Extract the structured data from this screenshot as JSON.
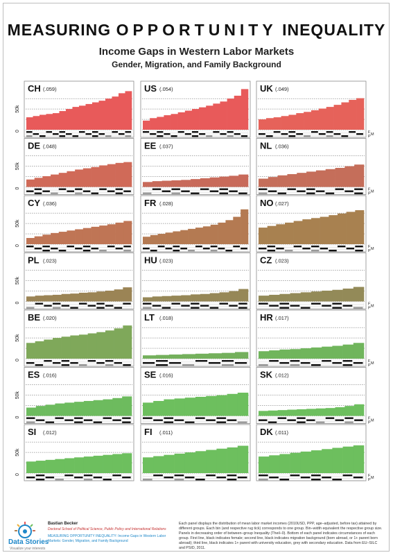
{
  "header": {
    "title_a": "MEASURING",
    "title_b": "OPPORTUNITY",
    "title_c": "INEQUALITY",
    "subtitle": "Income Gaps in Western Labor Markets",
    "subsubtitle": "Gender, Migration, and Family Background"
  },
  "footer": {
    "brand": "Data Stories",
    "tagline": "Visualize your interests",
    "author": "Bastian Becker",
    "affiliation": "Doctoral School of Political Science, Public Policy and International Relations",
    "citation": "MEASURING OPPORTUNITY INEQUALITY: Income Gaps in Western Labor Markets: Gender, Migration, and Family Background",
    "note": "Each panel displays the distribution of mean labor market incomes (2010USD, PPP, age–adjusted, before tax) attained by different groups. Each bin (and respective rug tick) corresponds to one group. Bin–width equivalent the respective group size. Panels in decreasing order of between–group Inequality (Theil–0). Bottom of each panel indicates circumstances of each group. First line, black indicates female; second line, black indicates migration background (born abroad, or 1+ parent born abroad); third line, black indicates 1+ parent with university education, grey with secondary education. Data from EU–SILC and PSID, 2011."
  },
  "colors": {
    "red": "#e85a5a",
    "brown_red": "#c9705a",
    "brown": "#b07f50",
    "olive": "#8f8f5a",
    "green": "#6dbf5e",
    "grid": "#555555"
  },
  "chart_data": {
    "type": "bar",
    "ylabel": "",
    "yticks": [
      "0",
      "50k"
    ],
    "ylim": [
      0,
      100000
    ],
    "row_labels": [
      "F",
      "M",
      "P"
    ],
    "panels": [
      {
        "country": "CH",
        "theil": "(.059)",
        "color": "#e85a5a",
        "values": [
          30000,
          33000,
          36000,
          38000,
          40000,
          45000,
          50000,
          55000,
          58000,
          62000,
          66000,
          70000,
          75000,
          80000,
          88000,
          93000
        ]
      },
      {
        "country": "US",
        "theil": "(.054)",
        "color": "#e85a5a",
        "values": [
          22000,
          28000,
          31000,
          35000,
          38000,
          42000,
          46000,
          50000,
          54000,
          58000,
          63000,
          68000,
          75000,
          82000,
          98000
        ]
      },
      {
        "country": "UK",
        "theil": "(.049)",
        "color": "#e6625a",
        "values": [
          25000,
          28000,
          30000,
          33000,
          36000,
          40000,
          43000,
          47000,
          51000,
          55000,
          60000,
          66000,
          72000,
          76000
        ]
      },
      {
        "country": "DE",
        "theil": "(.048)",
        "color": "#d06a58",
        "values": [
          18000,
          22000,
          26000,
          30000,
          34000,
          38000,
          42000,
          45000,
          48000,
          52000,
          55000,
          58000,
          60000
        ]
      },
      {
        "country": "EE",
        "theil": "(.037)",
        "color": "#c86a5a",
        "values": [
          12000,
          14000,
          15000,
          16000,
          17000,
          19000,
          21000,
          23000,
          25000,
          27000,
          30000
        ]
      },
      {
        "country": "NL",
        "theil": "(.036)",
        "color": "#c56e5a",
        "values": [
          20000,
          24000,
          28000,
          31000,
          34000,
          37000,
          40000,
          43000,
          46000,
          50000,
          54000
        ]
      },
      {
        "country": "CY",
        "theil": "(.036)",
        "color": "#bf7555",
        "values": [
          15000,
          19000,
          23000,
          27000,
          30000,
          33000,
          36000,
          39000,
          42000,
          45000,
          48000,
          52000,
          56000
        ]
      },
      {
        "country": "FR",
        "theil": "(.028)",
        "color": "#b47a52",
        "values": [
          18000,
          22000,
          25000,
          28000,
          31000,
          34000,
          37000,
          40000,
          43000,
          47000,
          52000,
          58000,
          66000,
          84000
        ]
      },
      {
        "country": "NO",
        "theil": "(.027)",
        "color": "#a88150",
        "values": [
          40000,
          44000,
          48000,
          52000,
          56000,
          60000,
          63000,
          66000,
          70000,
          74000,
          78000,
          82000
        ]
      },
      {
        "country": "PL",
        "theil": "(.023)",
        "color": "#9b8455",
        "values": [
          12000,
          14000,
          15000,
          16000,
          18000,
          19000,
          21000,
          22000,
          24000,
          26000,
          29000,
          34000
        ]
      },
      {
        "country": "HU",
        "theil": "(.023)",
        "color": "#968757",
        "values": [
          10000,
          12000,
          13000,
          14000,
          15000,
          17000,
          18000,
          20000,
          22000,
          25000,
          30000
        ]
      },
      {
        "country": "CZ",
        "theil": "(.023)",
        "color": "#938a58",
        "values": [
          14000,
          16000,
          18000,
          20000,
          22000,
          24000,
          26000,
          28000,
          31000,
          35000
        ]
      },
      {
        "country": "BE",
        "theil": "(.020)",
        "color": "#7fa85a",
        "values": [
          38000,
          42000,
          46000,
          50000,
          53000,
          56000,
          58000,
          61000,
          64000,
          68000,
          73000,
          80000
        ]
      },
      {
        "country": "LT",
        "theil": "(.018)",
        "color": "#74b05c",
        "values": [
          8000,
          9000,
          10000,
          11000,
          12000,
          13000,
          14000,
          16000
        ]
      },
      {
        "country": "HR",
        "theil": "(.017)",
        "color": "#70b55c",
        "values": [
          18000,
          20000,
          22000,
          23000,
          25000,
          27000,
          29000,
          31000,
          34000,
          38000
        ]
      },
      {
        "country": "ES",
        "theil": "(.016)",
        "color": "#6dbb5e",
        "values": [
          20000,
          24000,
          27000,
          30000,
          32000,
          34000,
          36000,
          38000,
          40000,
          43000,
          47000
        ]
      },
      {
        "country": "SE",
        "theil": "(.016)",
        "color": "#6dbf5e",
        "values": [
          32000,
          36000,
          40000,
          42000,
          44000,
          46000,
          48000,
          50000,
          53000,
          56000
        ]
      },
      {
        "country": "SK",
        "theil": "(.012)",
        "color": "#6dbf5e",
        "values": [
          12000,
          13000,
          14000,
          15000,
          16000,
          17000,
          18000,
          19000,
          21000,
          24000,
          28000
        ]
      },
      {
        "country": "SI",
        "theil": "(.012)",
        "color": "#6dbf5e",
        "values": [
          28000,
          30000,
          32000,
          34000,
          36000,
          38000,
          40000,
          42000,
          44000,
          46000,
          48000
        ]
      },
      {
        "country": "FI",
        "theil": "(.011)",
        "color": "#6dbf5e",
        "values": [
          38000,
          41000,
          44000,
          47000,
          50000,
          53000,
          56000,
          59000,
          62000,
          66000
        ]
      },
      {
        "country": "DK",
        "theil": "(.011)",
        "color": "#6dbf5e",
        "values": [
          40000,
          43000,
          46000,
          49000,
          52000,
          55000,
          58000,
          61000,
          64000,
          67000
        ]
      }
    ]
  }
}
